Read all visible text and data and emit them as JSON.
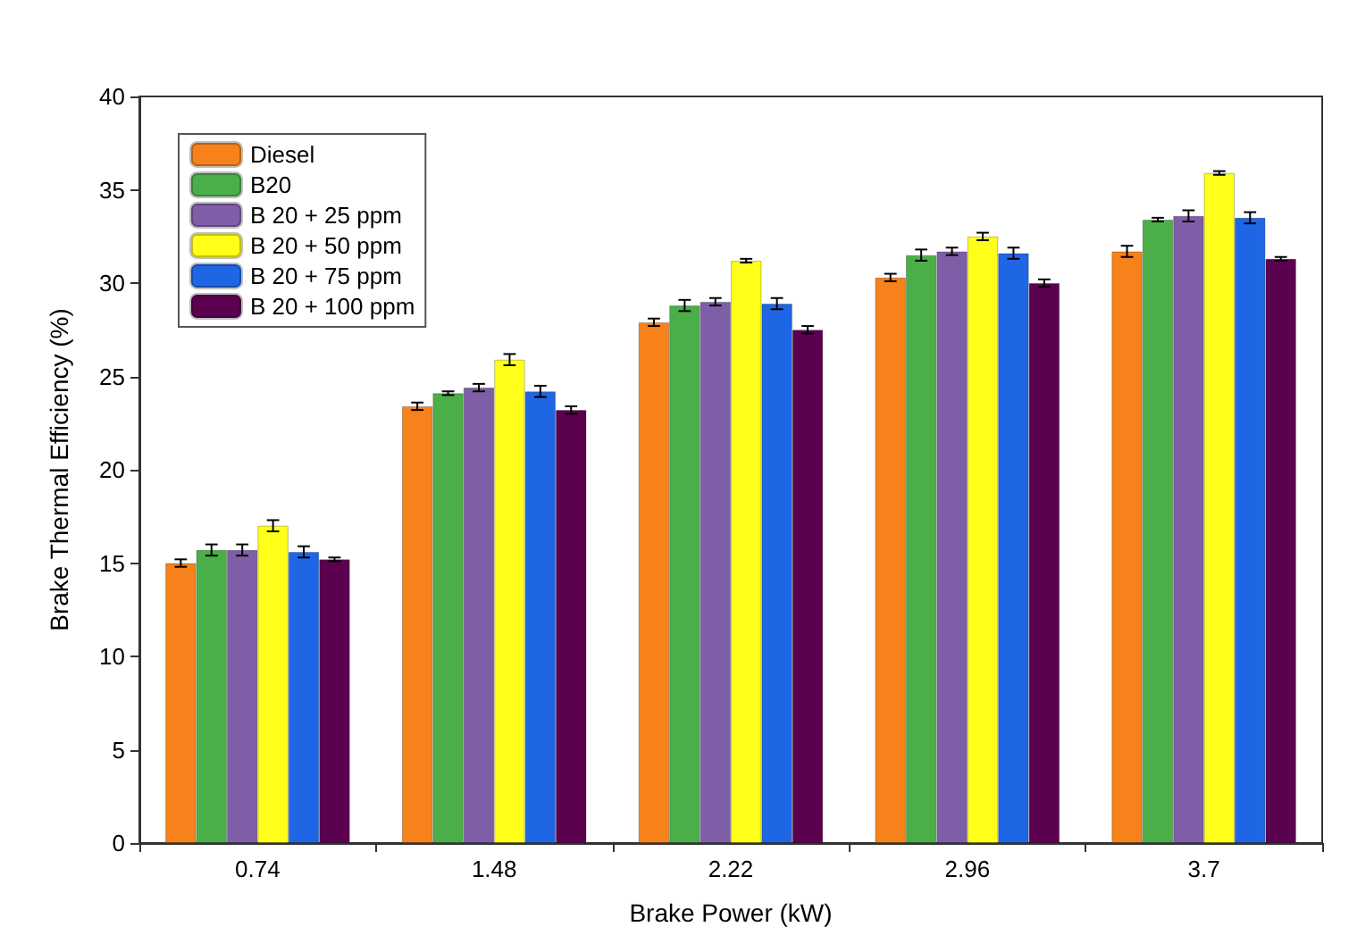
{
  "chart_data": {
    "type": "bar",
    "xlabel": "Brake Power (kW)",
    "ylabel": "Brake Thermal Efficiency (%)",
    "categories": [
      "0.74",
      "1.48",
      "2.22",
      "2.96",
      "3.7"
    ],
    "series": [
      {
        "name": "Diesel",
        "color": "#f7811a",
        "values": [
          15.0,
          23.4,
          27.9,
          30.3,
          31.7
        ],
        "errors": [
          0.2,
          0.2,
          0.2,
          0.2,
          0.3
        ]
      },
      {
        "name": "B20",
        "color": "#4aaf48",
        "values": [
          15.7,
          24.1,
          28.8,
          31.5,
          33.4
        ],
        "errors": [
          0.3,
          0.1,
          0.3,
          0.3,
          0.1
        ]
      },
      {
        "name": "B 20 + 25 ppm",
        "color": "#7f5ea8",
        "values": [
          15.7,
          24.4,
          29.0,
          31.7,
          33.6
        ],
        "errors": [
          0.3,
          0.2,
          0.2,
          0.2,
          0.3
        ]
      },
      {
        "name": "B 20 + 50 ppm",
        "color": "#ffff19",
        "values": [
          17.0,
          25.9,
          31.2,
          32.5,
          35.9
        ],
        "errors": [
          0.3,
          0.3,
          0.1,
          0.2,
          0.1
        ]
      },
      {
        "name": "B 20 + 75 ppm",
        "color": "#1f66e5",
        "values": [
          15.6,
          24.2,
          28.9,
          31.6,
          33.5
        ],
        "errors": [
          0.3,
          0.3,
          0.3,
          0.3,
          0.3
        ]
      },
      {
        "name": "B 20 + 100 ppm",
        "color": "#5c0050",
        "values": [
          15.2,
          23.2,
          27.5,
          30.0,
          31.3
        ],
        "errors": [
          0.1,
          0.2,
          0.2,
          0.2,
          0.1
        ]
      }
    ],
    "ylim": [
      0,
      40
    ],
    "yticks": [
      0,
      5,
      10,
      15,
      20,
      25,
      30,
      35,
      40
    ],
    "grid": false,
    "legend": "top left"
  }
}
